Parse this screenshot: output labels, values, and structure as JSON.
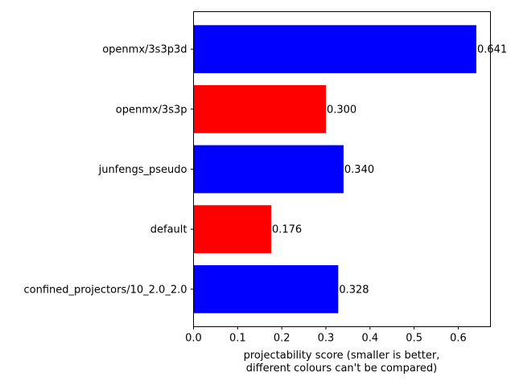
{
  "chart_data": {
    "type": "bar",
    "orientation": "horizontal",
    "categories": [
      "openmx/3s3p3d",
      "openmx/3s3p",
      "junfengs_pseudo",
      "default",
      "confined_projectors/10_2.0_2.0"
    ],
    "values": [
      0.641,
      0.3,
      0.34,
      0.176,
      0.328
    ],
    "value_labels": [
      "0.641",
      "0.300",
      "0.340",
      "0.176",
      "0.328"
    ],
    "bar_colors": [
      "#0000ff",
      "#ff0000",
      "#0000ff",
      "#ff0000",
      "#0000ff"
    ],
    "xlabel": [
      "projectability score (smaller is better,",
      "different colours can't be compared)"
    ],
    "ylabel": "",
    "title": "",
    "xlim": [
      0,
      0.673
    ],
    "xticks": [
      0.0,
      0.1,
      0.2,
      0.3,
      0.4,
      0.5,
      0.6
    ],
    "xtick_labels": [
      "0.0",
      "0.1",
      "0.2",
      "0.3",
      "0.4",
      "0.5",
      "0.6"
    ],
    "grid": false,
    "legend": "none"
  }
}
